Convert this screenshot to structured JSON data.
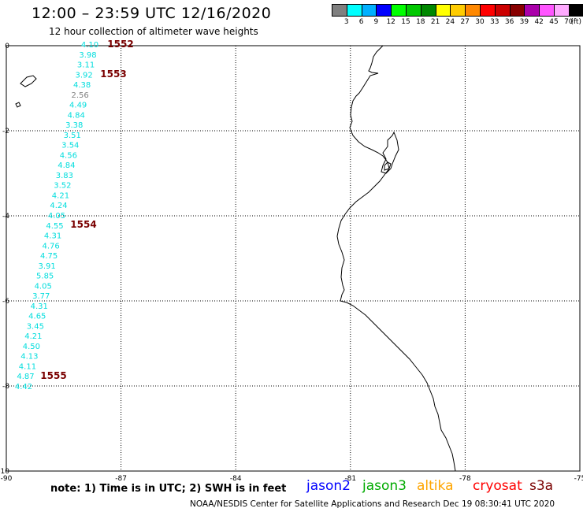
{
  "header": {
    "title": "12:00 – 23:59 UTC 12/16/2020",
    "subtitle": "12 hour collection of altimeter wave heights"
  },
  "legend": {
    "unit": "(ft)",
    "bins": [
      {
        "label": "3",
        "color": "#808080"
      },
      {
        "label": "6",
        "color": "#00ffff"
      },
      {
        "label": "9",
        "color": "#00b0ff"
      },
      {
        "label": "12",
        "color": "#0000ff"
      },
      {
        "label": "15",
        "color": "#00ff00"
      },
      {
        "label": "18",
        "color": "#00c800"
      },
      {
        "label": "21",
        "color": "#008800"
      },
      {
        "label": "24",
        "color": "#ffff00"
      },
      {
        "label": "27",
        "color": "#ffcc00"
      },
      {
        "label": "30",
        "color": "#ff8800"
      },
      {
        "label": "33",
        "color": "#ff0000"
      },
      {
        "label": "36",
        "color": "#cc0000"
      },
      {
        "label": "39",
        "color": "#880000"
      },
      {
        "label": "42",
        "color": "#aa00aa"
      },
      {
        "label": "45",
        "color": "#ff55ff"
      },
      {
        "label": "70",
        "color": "#ffaaff"
      },
      {
        "label": "(ft)",
        "color": "#000000"
      }
    ]
  },
  "map": {
    "lon_ticks": [
      "-90",
      "-87",
      "-84",
      "-81",
      "-78",
      "-75"
    ],
    "lat_ticks": [
      "0",
      "-2",
      "-4",
      "-6",
      "-8",
      "-10"
    ],
    "lon_range": [
      -90,
      -75
    ],
    "lat_range": [
      -10,
      0
    ],
    "grid": true
  },
  "wave_heights": [
    {
      "value": "4.10",
      "color": "#00dddd"
    },
    {
      "value": "3.98",
      "color": "#00dddd"
    },
    {
      "value": "3.11",
      "color": "#00dddd"
    },
    {
      "value": "3.92",
      "color": "#00dddd"
    },
    {
      "value": "4.38",
      "color": "#00dddd"
    },
    {
      "value": "2.56",
      "color": "#808080"
    },
    {
      "value": "4.49",
      "color": "#00dddd"
    },
    {
      "value": "4.84",
      "color": "#00dddd"
    },
    {
      "value": "3.38",
      "color": "#00dddd"
    },
    {
      "value": "3.51",
      "color": "#00dddd"
    },
    {
      "value": "3.54",
      "color": "#00dddd"
    },
    {
      "value": "4.56",
      "color": "#00dddd"
    },
    {
      "value": "4.84",
      "color": "#00dddd"
    },
    {
      "value": "3.83",
      "color": "#00dddd"
    },
    {
      "value": "3.52",
      "color": "#00dddd"
    },
    {
      "value": "4.21",
      "color": "#00dddd"
    },
    {
      "value": "4.24",
      "color": "#00dddd"
    },
    {
      "value": "4.05",
      "color": "#00dddd"
    },
    {
      "value": "4.55",
      "color": "#00dddd"
    },
    {
      "value": "4.31",
      "color": "#00dddd"
    },
    {
      "value": "4.76",
      "color": "#00dddd"
    },
    {
      "value": "4.75",
      "color": "#00dddd"
    },
    {
      "value": "3.91",
      "color": "#00dddd"
    },
    {
      "value": "5.85",
      "color": "#00dddd"
    },
    {
      "value": "4.05",
      "color": "#00dddd"
    },
    {
      "value": "3.77",
      "color": "#00dddd"
    },
    {
      "value": "4.31",
      "color": "#00dddd"
    },
    {
      "value": "4.65",
      "color": "#00dddd"
    },
    {
      "value": "3.45",
      "color": "#00dddd"
    },
    {
      "value": "4.21",
      "color": "#00dddd"
    },
    {
      "value": "4.50",
      "color": "#00dddd"
    },
    {
      "value": "4.13",
      "color": "#00dddd"
    },
    {
      "value": "4.11",
      "color": "#00dddd"
    },
    {
      "value": "4.87",
      "color": "#00dddd"
    },
    {
      "value": "4.42",
      "color": "#00dddd"
    }
  ],
  "time_labels": [
    {
      "value": "1552",
      "color": "#7a0000"
    },
    {
      "value": "1553",
      "color": "#7a0000"
    },
    {
      "value": "1554",
      "color": "#7a0000"
    },
    {
      "value": "1555",
      "color": "#7a0000"
    }
  ],
  "footer": {
    "note": "note: 1) Time is in UTC; 2) SWH is in feet",
    "satellites": [
      {
        "name": "jason2",
        "color": "#0000ff"
      },
      {
        "name": "jason3",
        "color": "#00aa00"
      },
      {
        "name": "altika",
        "color": "#ffa500"
      },
      {
        "name": "cryosat",
        "color": "#ff0000"
      },
      {
        "name": "s3a",
        "color": "#7a0000"
      }
    ],
    "credit": "NOAA/NESDIS Center for Satellite Applications and Research    Dec 19 08:30:41 UTC 2020"
  }
}
